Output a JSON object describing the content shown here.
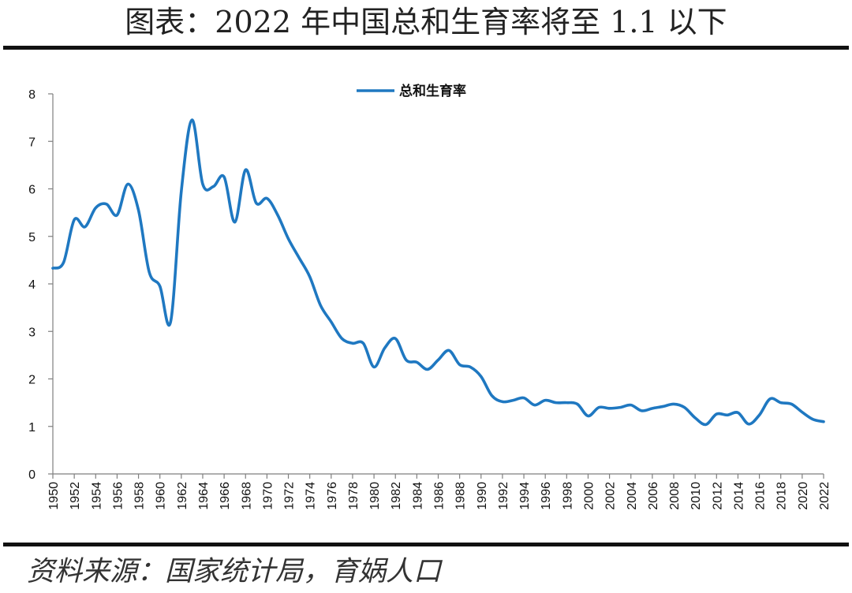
{
  "page": {
    "title": "图表：2022 年中国总和生育率将至 1.1 以下",
    "source": "资料来源：国家统计局，育娲人口"
  },
  "colors": {
    "series": "#1f78c1",
    "axis": "#7f7f7f",
    "rule": "#111111"
  },
  "chart_data": {
    "type": "line",
    "title": "",
    "xlabel": "",
    "ylabel": "",
    "ylim": [
      0,
      8
    ],
    "yticks": [
      0,
      1,
      2,
      3,
      4,
      5,
      6,
      7,
      8
    ],
    "xlim": [
      1950,
      2022
    ],
    "xticks": [
      1950,
      1952,
      1954,
      1956,
      1958,
      1960,
      1962,
      1964,
      1966,
      1968,
      1970,
      1972,
      1974,
      1976,
      1978,
      1980,
      1982,
      1984,
      1986,
      1988,
      1990,
      1992,
      1994,
      1996,
      1998,
      2000,
      2002,
      2004,
      2006,
      2008,
      2010,
      2012,
      2014,
      2016,
      2018,
      2020,
      2022
    ],
    "grid": false,
    "legend_position": "top-center",
    "x": [
      1950,
      1951,
      1952,
      1953,
      1954,
      1955,
      1956,
      1957,
      1958,
      1959,
      1960,
      1961,
      1962,
      1963,
      1964,
      1965,
      1966,
      1967,
      1968,
      1969,
      1970,
      1971,
      1972,
      1973,
      1974,
      1975,
      1976,
      1977,
      1978,
      1979,
      1980,
      1981,
      1982,
      1983,
      1984,
      1985,
      1986,
      1987,
      1988,
      1989,
      1990,
      1991,
      1992,
      1993,
      1994,
      1995,
      1996,
      1997,
      1998,
      1999,
      2000,
      2001,
      2002,
      2003,
      2004,
      2005,
      2006,
      2007,
      2008,
      2009,
      2010,
      2011,
      2012,
      2013,
      2014,
      2015,
      2016,
      2017,
      2018,
      2019,
      2020,
      2021,
      2022
    ],
    "series": [
      {
        "name": "总和生育率",
        "values": [
          4.33,
          4.45,
          5.35,
          5.2,
          5.6,
          5.68,
          5.45,
          6.1,
          5.55,
          4.25,
          3.95,
          3.2,
          5.95,
          7.45,
          6.1,
          6.05,
          6.25,
          5.3,
          6.4,
          5.7,
          5.8,
          5.45,
          4.95,
          4.55,
          4.15,
          3.55,
          3.2,
          2.85,
          2.75,
          2.75,
          2.25,
          2.65,
          2.85,
          2.4,
          2.35,
          2.2,
          2.4,
          2.6,
          2.3,
          2.25,
          2.05,
          1.65,
          1.52,
          1.55,
          1.6,
          1.45,
          1.55,
          1.5,
          1.5,
          1.47,
          1.22,
          1.4,
          1.38,
          1.4,
          1.45,
          1.33,
          1.38,
          1.42,
          1.47,
          1.4,
          1.18,
          1.04,
          1.26,
          1.24,
          1.29,
          1.05,
          1.24,
          1.58,
          1.5,
          1.47,
          1.3,
          1.15,
          1.1
        ]
      }
    ]
  }
}
